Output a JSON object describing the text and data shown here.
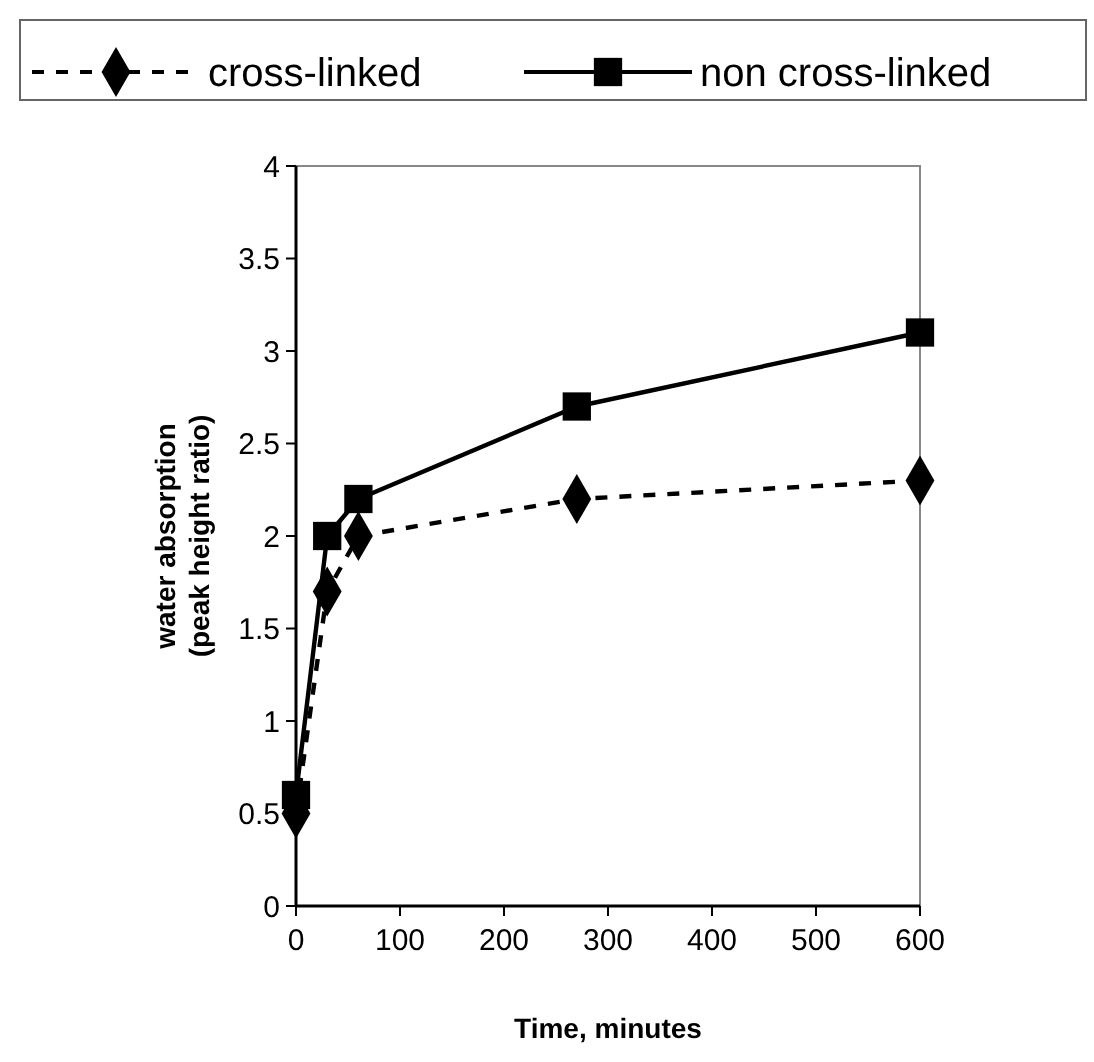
{
  "chart_data": {
    "type": "line",
    "xlabel": "Time, minutes",
    "ylabel": "water absorption\n(peak height ratio)",
    "x": [
      0,
      30,
      60,
      270,
      600
    ],
    "xlim": [
      0,
      600
    ],
    "xticks": [
      0,
      100,
      200,
      300,
      400,
      500,
      600
    ],
    "ylim": [
      0,
      4
    ],
    "yticks": [
      0,
      0.5,
      1,
      1.5,
      2,
      2.5,
      3,
      3.5,
      4
    ],
    "legend": "top",
    "grid": false,
    "series": [
      {
        "name": "cross-linked",
        "color": "#000000",
        "values": [
          0.5,
          1.7,
          2.0,
          2.2,
          2.3
        ],
        "marker": "diamond",
        "line_style": "dashed"
      },
      {
        "name": "non cross-linked",
        "color": "#000000",
        "values": [
          0.6,
          2.0,
          2.2,
          2.7,
          3.1
        ],
        "marker": "square",
        "line_style": "solid"
      }
    ]
  }
}
